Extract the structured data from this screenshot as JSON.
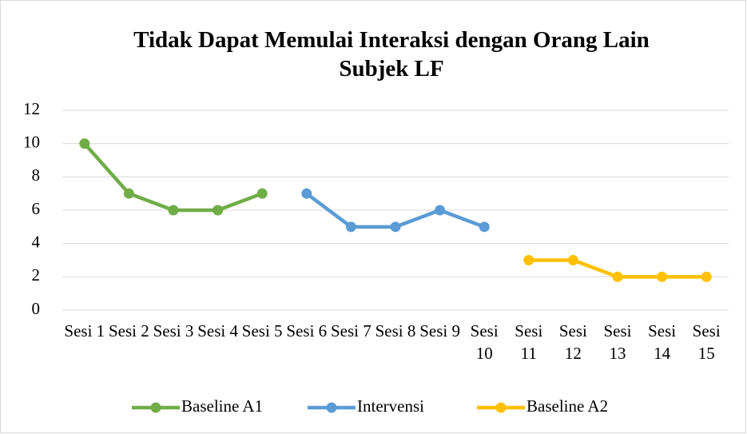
{
  "chart_data": {
    "type": "line",
    "title": "Tidak Dapat Memulai Interaksi dengan Orang Lain Subjek LF",
    "categories": [
      "Sesi 1",
      "Sesi 2",
      "Sesi 3",
      "Sesi 4",
      "Sesi 5",
      "Sesi 6",
      "Sesi 7",
      "Sesi 8",
      "Sesi 9",
      "Sesi 10",
      "Sesi 11",
      "Sesi 12",
      "Sesi 13",
      "Sesi 14",
      "Sesi 15"
    ],
    "series": [
      {
        "name": "Baseline A1",
        "color": "#70ad47",
        "values": [
          10,
          7,
          6,
          6,
          7,
          null,
          null,
          null,
          null,
          null,
          null,
          null,
          null,
          null,
          null
        ]
      },
      {
        "name": "Intervensi",
        "color": "#5b9bd5",
        "values": [
          null,
          null,
          null,
          null,
          null,
          7,
          5,
          5,
          6,
          5,
          null,
          null,
          null,
          null,
          null
        ]
      },
      {
        "name": "Baseline A2",
        "color": "#ffc000",
        "values": [
          null,
          null,
          null,
          null,
          null,
          null,
          null,
          null,
          null,
          null,
          3,
          3,
          2,
          2,
          2
        ]
      }
    ],
    "ylim": [
      0,
      12
    ],
    "yticks": [
      0,
      2,
      4,
      6,
      8,
      10,
      12
    ],
    "grid": true,
    "legend": "bottom"
  }
}
